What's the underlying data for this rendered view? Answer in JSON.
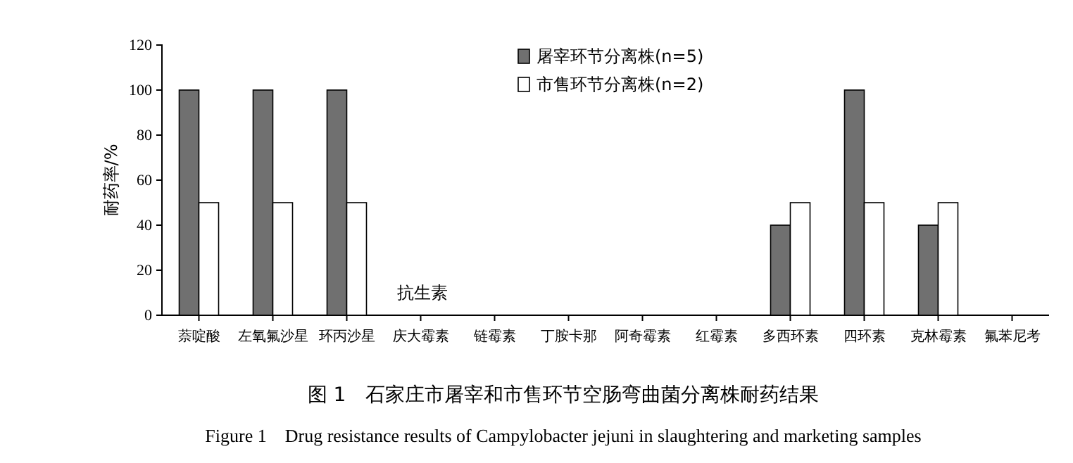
{
  "chart_data": {
    "type": "bar",
    "title": "图 1　石家庄市屠宰和市售环节空肠弯曲菌分离株耐药结果",
    "subtitle": "Figure 1　Drug resistance results of Campylobacter jejuni in slaughtering and marketing samples",
    "xlabel": "抗生素",
    "ylabel": "耐药率/%",
    "categories": [
      "萘啶酸",
      "左氧氟沙星",
      "环丙沙星",
      "庆大霉素",
      "链霉素",
      "丁胺卡那",
      "阿奇霉素",
      "红霉素",
      "多西环素",
      "四环素",
      "克林霉素",
      "氟苯尼考"
    ],
    "series": [
      {
        "name": "屠宰环节分离株(n=5)",
        "color": "#707070",
        "values": [
          100,
          100,
          100,
          0,
          0,
          0,
          0,
          0,
          40,
          100,
          40,
          0
        ]
      },
      {
        "name": "市售环节分离株(n=2)",
        "color": "#ffffff",
        "values": [
          50,
          50,
          50,
          0,
          0,
          0,
          0,
          0,
          50,
          50,
          50,
          0
        ]
      }
    ],
    "ylim": [
      0,
      120
    ],
    "yticks": [
      0,
      20,
      40,
      60,
      80,
      100,
      120
    ],
    "grid": false,
    "legend": "top"
  }
}
